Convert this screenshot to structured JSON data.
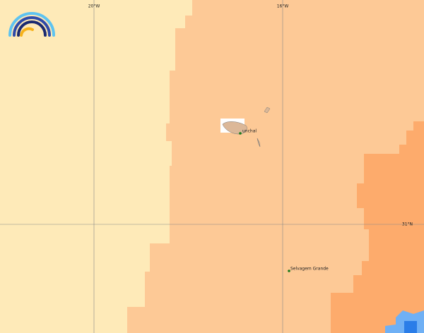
{
  "map": {
    "grid_labels": {
      "lon_20": "20°W",
      "lon_16": "16°W",
      "lat_31": "31°N"
    },
    "places": [
      {
        "label": "unchal"
      },
      {
        "label": "Selvagem Grande"
      }
    ]
  }
}
